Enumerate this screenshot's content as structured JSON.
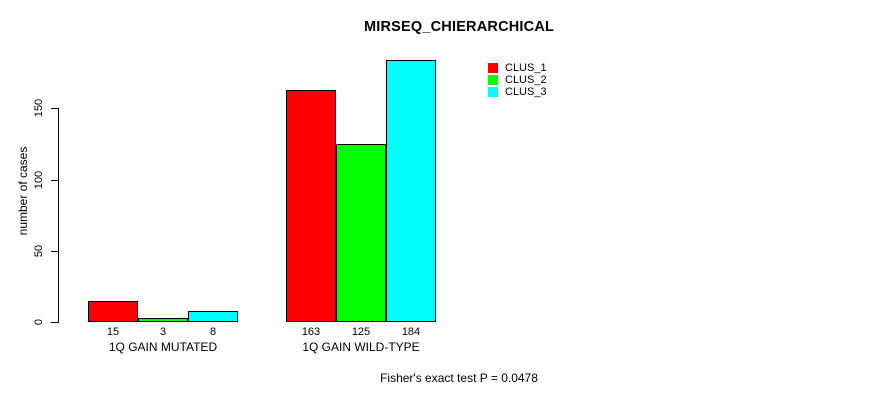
{
  "chart_data": {
    "type": "bar",
    "title": "MIRSEQ_CHIERARCHICAL",
    "ylabel": "number of cases",
    "xlabel": "",
    "ylim": [
      0,
      190
    ],
    "yticks": [
      0,
      50,
      100,
      150
    ],
    "grid": false,
    "categories": [
      "1Q GAIN MUTATED",
      "1Q GAIN WILD-TYPE"
    ],
    "series": [
      {
        "name": "CLUS_1",
        "color": "#FF0000",
        "values": [
          15,
          163
        ]
      },
      {
        "name": "CLUS_2",
        "color": "#00FF00",
        "values": [
          3,
          125
        ]
      },
      {
        "name": "CLUS_3",
        "color": "#00FFFF",
        "values": [
          8,
          184
        ]
      }
    ],
    "show_values_under_bars": true,
    "legend": {
      "position": "top-right",
      "entries": [
        "CLUS_1",
        "CLUS_2",
        "CLUS_3"
      ]
    },
    "footnote": "Fisher's exact test P = 0.0478"
  }
}
